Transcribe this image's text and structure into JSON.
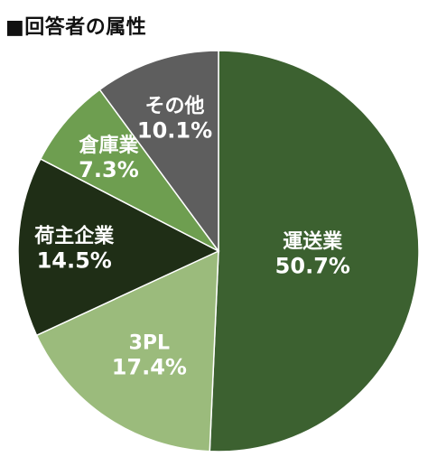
{
  "chart_data": {
    "type": "pie",
    "title": "■回答者の属性",
    "start": "12 o'clock",
    "direction": "clockwise",
    "slices": [
      {
        "name": "運送業",
        "value": 50.7,
        "label": "50.7%",
        "color": "#3c6130"
      },
      {
        "name": "3PL",
        "value": 17.4,
        "label": "17.4%",
        "color": "#9bbb7c"
      },
      {
        "name": "荷主企業",
        "value": 14.5,
        "label": "14.5%",
        "color": "#1f2e16"
      },
      {
        "name": "倉庫業",
        "value": 7.3,
        "label": "7.3%",
        "color": "#6e9e50"
      },
      {
        "name": "その他",
        "value": 10.1,
        "label": "10.1%",
        "color": "#5e5e5e"
      }
    ]
  }
}
